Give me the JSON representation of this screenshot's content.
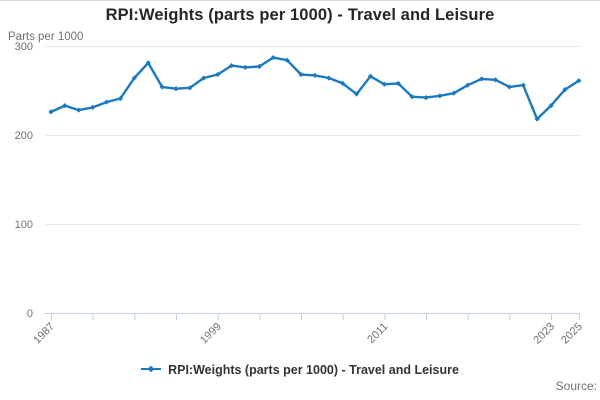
{
  "header": {
    "title": "RPI:Weights (parts per 1000) - Travel and Leisure"
  },
  "legend": {
    "label": "RPI:Weights (parts per 1000) - Travel and Leisure",
    "marker": "line-with-diamond-icon"
  },
  "footer": {
    "source_label": "Source:"
  },
  "colors": {
    "line": "#1b79bf",
    "grid": "#e6e6e6",
    "axis": "#c2cfe0",
    "muted_text": "#6e7073",
    "title_text": "#262626",
    "legend_text": "#333333"
  },
  "chart_data": {
    "type": "line",
    "title": "RPI:Weights (parts per 1000) - Travel and Leisure",
    "xlabel": "",
    "ylabel": "Parts per 1000",
    "ylim": [
      0,
      300
    ],
    "yticks": [
      0,
      100,
      200,
      300
    ],
    "xtick_years": [
      1987,
      1990,
      1993,
      1996,
      1999,
      2002,
      2005,
      2008,
      2011,
      2014,
      2017,
      2020,
      2023,
      2025
    ],
    "xtick_labels_shown": [
      "1987",
      "1999",
      "2011",
      "2023",
      "2025"
    ],
    "grid": true,
    "legend_position": "bottom",
    "series": [
      {
        "name": "RPI:Weights (parts per 1000) - Travel and Leisure",
        "x": [
          1987,
          1988,
          1989,
          1990,
          1991,
          1992,
          1993,
          1994,
          1995,
          1996,
          1997,
          1998,
          1999,
          2000,
          2001,
          2002,
          2003,
          2004,
          2005,
          2006,
          2007,
          2008,
          2009,
          2010,
          2011,
          2012,
          2013,
          2014,
          2015,
          2016,
          2017,
          2018,
          2019,
          2020,
          2021,
          2022,
          2023,
          2024,
          2025
        ],
        "values": [
          226,
          233,
          228,
          231,
          237,
          241,
          264,
          281,
          254,
          252,
          253,
          264,
          268,
          278,
          276,
          277,
          287,
          284,
          268,
          267,
          264,
          258,
          246,
          266,
          257,
          258,
          243,
          242,
          244,
          247,
          256,
          263,
          262,
          254,
          256,
          218,
          233,
          251,
          261
        ]
      }
    ]
  }
}
